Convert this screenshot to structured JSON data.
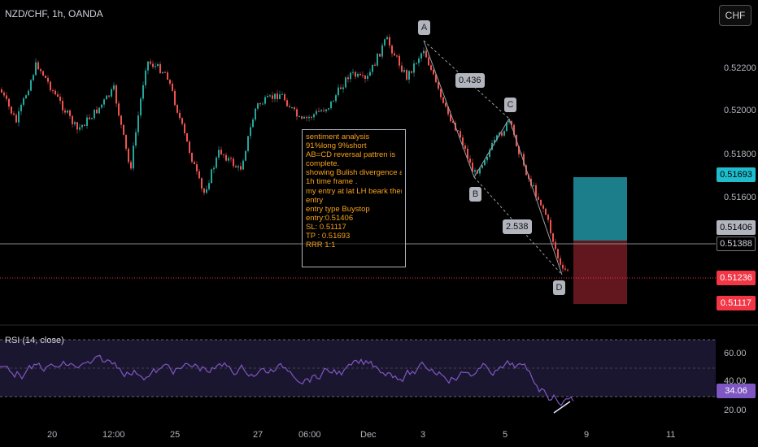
{
  "header": {
    "symbol_title": "NZD/CHF, 1h, OANDA",
    "currency_button": "CHF"
  },
  "price_axis": {
    "labels": [
      "0.52200",
      "0.52000",
      "0.51800",
      "0.51600"
    ]
  },
  "time_axis": {
    "labels": [
      "20",
      "12:00",
      "25",
      "27",
      "06:00",
      "Dec",
      "3",
      "5",
      "9",
      "11"
    ]
  },
  "price_tags": {
    "take_profit": "0.51693",
    "entry": "0.51406",
    "last": "0.51388",
    "current": "0.51236",
    "stop_loss": "0.51117"
  },
  "pattern": {
    "points": [
      "A",
      "B",
      "C",
      "D"
    ],
    "ratio_ab": "0.436",
    "ratio_cd": "2.538"
  },
  "note": {
    "lines": [
      "sentiment analysis",
      "91%long 9%short",
      "AB=CD reversal pattren is",
      "complete.",
      "showing Bulish divergence at",
      "1h time frame .",
      "my entry at lat LH beark then",
      "entry",
      "entry type Buystop",
      "entry:0.51406",
      "SL: 0.51117",
      "TP : 0.51693",
      "RRR 1:1"
    ]
  },
  "rsi": {
    "title": "RSI (14, close)",
    "axis_labels": [
      "60.00",
      "40.00",
      "20.00"
    ],
    "current_value": "34.06"
  },
  "colors": {
    "bull": "#26a69a",
    "bear": "#ef5350",
    "rsi_line": "#7e57c2",
    "note_text": "#f7a21b",
    "target_zone": "#1e8c99",
    "stop_zone": "#6b1a20"
  }
}
